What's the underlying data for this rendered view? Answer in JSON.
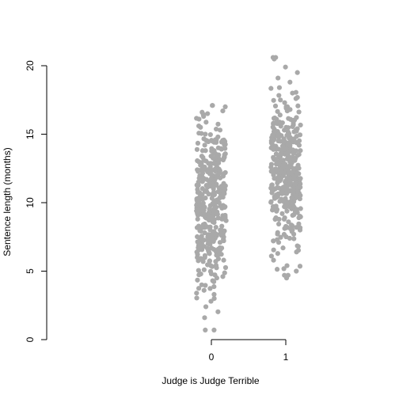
{
  "chart_data": {
    "type": "scatter",
    "xlabel": "Judge is Judge Terrible",
    "ylabel": "Sentence length (months)",
    "ylim": [
      0,
      20
    ],
    "xlim": [
      -1.0,
      2.0
    ],
    "x_ticks": [
      "0",
      "1"
    ],
    "y_ticks": [
      "0",
      "5",
      "10",
      "15",
      "20"
    ],
    "grid": false,
    "jitter": "horizontal, ±0.2 around each group",
    "point_color": "#a9a9a9",
    "series": [
      {
        "x": 0,
        "summary": {
          "n_approx": 400,
          "min": 0.7,
          "q1": 7.9,
          "median": 10.0,
          "q3": 12.0,
          "max": 17.1
        },
        "values": [
          17.1,
          17.0,
          16.7,
          16.5,
          16.3,
          16.1,
          15.6,
          15.5,
          15.3,
          15.0,
          14.8,
          14.5,
          14.4,
          14.2,
          14.0,
          13.8,
          13.5,
          13.3,
          13.0,
          12.8,
          12.6,
          12.4,
          12.2,
          12.0,
          11.8,
          11.6,
          11.4,
          11.2,
          11.0,
          10.8,
          10.6,
          10.4,
          10.2,
          10.0,
          9.8,
          9.6,
          9.4,
          9.2,
          9.0,
          8.8,
          8.6,
          8.4,
          8.2,
          8.0,
          7.8,
          7.6,
          7.4,
          7.2,
          7.0,
          6.8,
          6.5,
          6.2,
          6.0,
          5.7,
          5.4,
          5.1,
          4.8,
          4.5,
          4.3,
          4.0,
          3.6,
          3.3,
          3.0,
          2.8,
          2.4,
          1.6,
          0.7,
          0.7
        ]
      },
      {
        "x": 1,
        "summary": {
          "n_approx": 400,
          "min": 4.5,
          "q1": 10.3,
          "median": 12.0,
          "q3": 13.8,
          "max": 20.6
        },
        "values": [
          20.6,
          20.6,
          19.9,
          19.5,
          19.1,
          18.8,
          18.4,
          18.0,
          17.6,
          17.3,
          17.0,
          16.7,
          16.4,
          16.1,
          15.8,
          15.5,
          15.2,
          14.9,
          14.6,
          14.3,
          14.0,
          13.7,
          13.4,
          13.1,
          12.8,
          12.5,
          12.2,
          11.9,
          11.6,
          11.3,
          11.0,
          10.7,
          10.4,
          10.1,
          9.8,
          9.5,
          9.2,
          8.9,
          8.6,
          8.3,
          8.0,
          7.7,
          7.4,
          7.1,
          6.8,
          6.4,
          6.1,
          5.8,
          5.4,
          5.0,
          4.7,
          4.7,
          4.5
        ]
      }
    ]
  }
}
